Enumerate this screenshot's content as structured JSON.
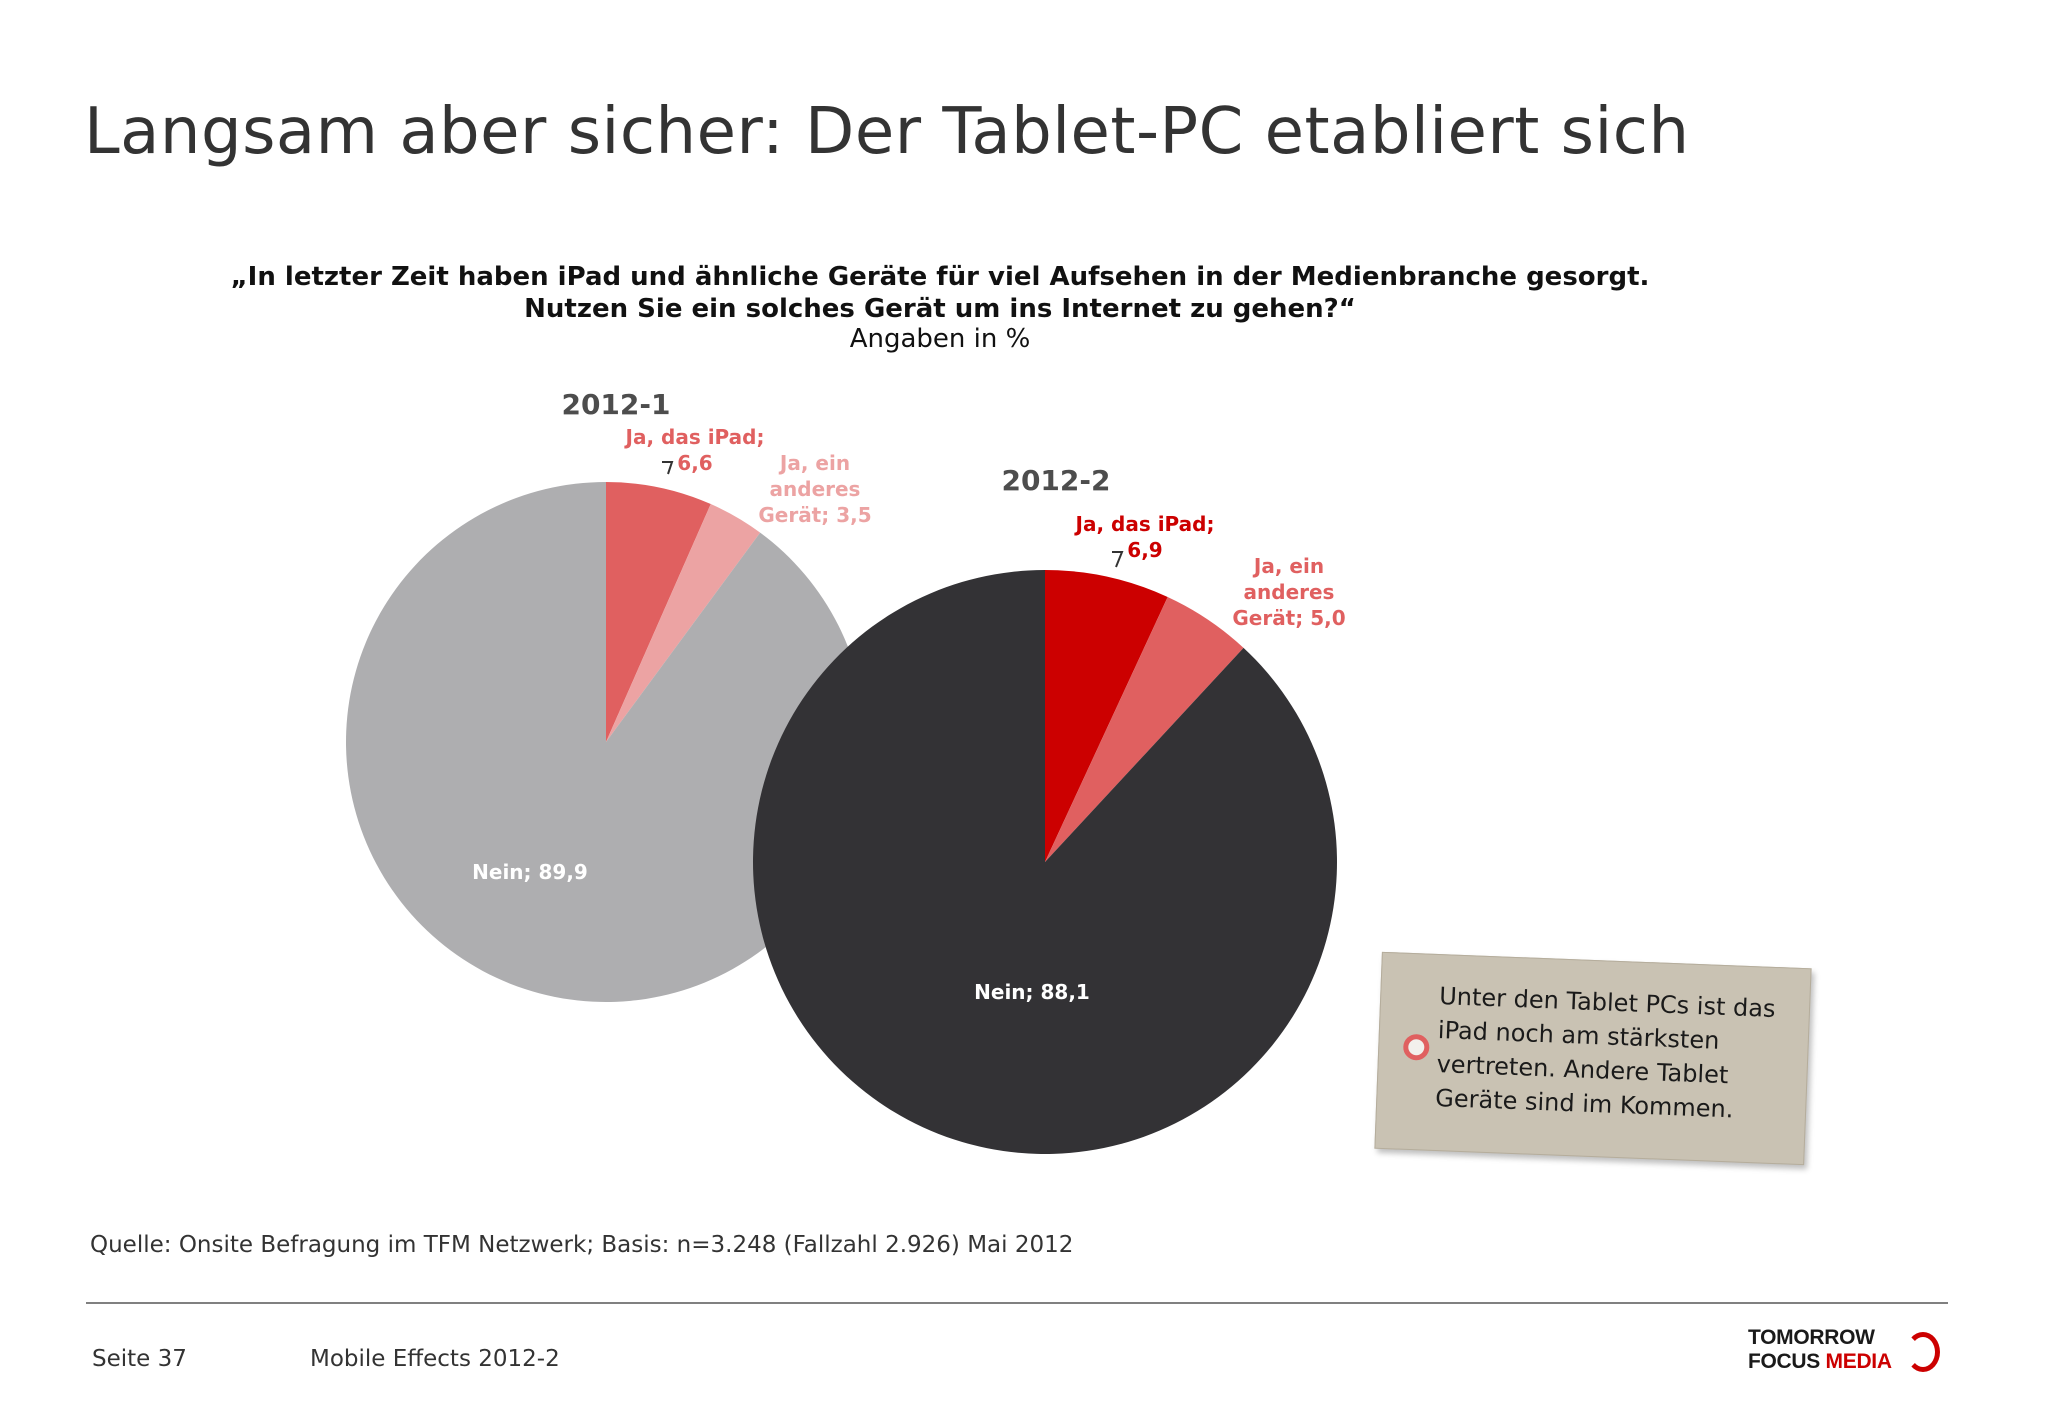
{
  "slide": {
    "title": "Langsam aber sicher: Der Tablet-PC etabliert sich",
    "question_line1": "„In letzter Zeit haben iPad und ähnliche Geräte für viel Aufsehen in der Medienbranche gesorgt.",
    "question_line2": "Nutzen Sie ein solches Gerät um ins Internet zu gehen?“",
    "units": "Angaben in %"
  },
  "chart_data": [
    {
      "type": "pie",
      "title": "2012-1",
      "unit": "%",
      "slices": [
        {
          "label": "Ja, das iPad",
          "value": 6.6,
          "color": "#e06060",
          "label_lines": [
            "Ja, das iPad;",
            "6,6"
          ],
          "label_color": "#e06060"
        },
        {
          "label": "Ja, ein anderes Gerät",
          "value": 3.5,
          "color": "#eca3a3",
          "label_lines": [
            "Ja, ein",
            "anderes",
            "Gerät; 3,5"
          ],
          "label_color": "#eca3a3"
        },
        {
          "label": "Nein",
          "value": 89.9,
          "color": "#aeaeb0",
          "label_lines": [
            "Nein; 89,9"
          ],
          "label_color": "#ffffff"
        }
      ]
    },
    {
      "type": "pie",
      "title": "2012-2",
      "unit": "%",
      "slices": [
        {
          "label": "Ja, das iPad",
          "value": 6.9,
          "color": "#cc0000",
          "label_lines": [
            "Ja, das iPad;",
            "6,9"
          ],
          "label_color": "#cc0000"
        },
        {
          "label": "Ja, ein anderes Gerät",
          "value": 5.0,
          "color": "#e06060",
          "label_lines": [
            "Ja, ein",
            "anderes",
            "Gerät; 5,0"
          ],
          "label_color": "#e06060"
        },
        {
          "label": "Nein",
          "value": 88.1,
          "color": "#333235",
          "label_lines": [
            "Nein; 88,1"
          ],
          "label_color": "#ffffff"
        }
      ]
    }
  ],
  "tag_note": {
    "text": "Unter den Tablet PCs ist das\niPad noch am stärksten\nvertreten. Andere Tablet\nGeräte sind im Kommen."
  },
  "footer": {
    "source": "Quelle: Onsite Befragung im TFM Netzwerk; Basis: n=3.248 (Fallzahl 2.926) Mai 2012",
    "page": "Seite 37",
    "report": "Mobile Effects 2012-2",
    "logo_line1": "TOMORROW",
    "logo_line2a": "FOCUS ",
    "logo_line2b": "MEDIA"
  }
}
